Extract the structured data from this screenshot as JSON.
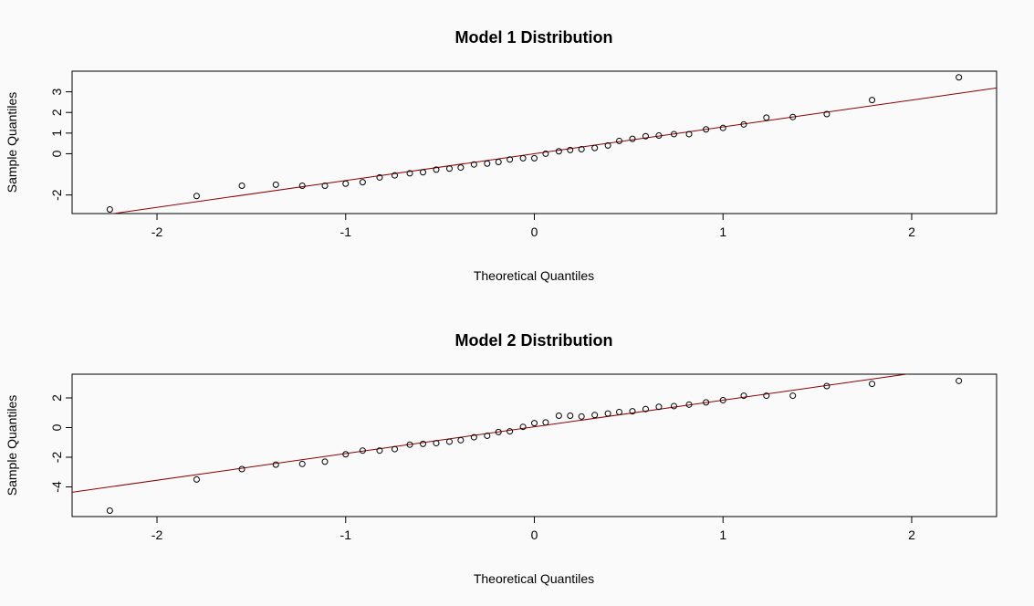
{
  "chart_data": [
    {
      "type": "scatter",
      "title": "Model 1 Distribution",
      "xlabel": "Theoretical Quantiles",
      "ylabel": "Sample Quantiles",
      "xlim": [
        -2.45,
        2.45
      ],
      "ylim": [
        -2.9,
        4.0
      ],
      "x_ticks": [
        -2,
        -1,
        0,
        1,
        2
      ],
      "x_tick_labels": [
        "-2",
        "-1",
        "0",
        "1",
        "2"
      ],
      "y_ticks": [
        -2,
        0,
        1,
        2,
        3
      ],
      "y_tick_labels": [
        "-2",
        "0",
        "1",
        "2",
        "3"
      ],
      "grid": false,
      "point_color": "#000000",
      "line_color": "#8b0000",
      "qq_line": {
        "intercept": 0.0,
        "slope": 1.3
      },
      "points": {
        "x": [
          -2.25,
          -1.79,
          -1.55,
          -1.37,
          -1.23,
          -1.11,
          -1.0,
          -0.91,
          -0.82,
          -0.74,
          -0.66,
          -0.59,
          -0.52,
          -0.45,
          -0.39,
          -0.32,
          -0.25,
          -0.19,
          -0.13,
          -0.06,
          0.0,
          0.06,
          0.13,
          0.19,
          0.25,
          0.32,
          0.39,
          0.45,
          0.52,
          0.59,
          0.66,
          0.74,
          0.82,
          0.91,
          1.0,
          1.11,
          1.23,
          1.37,
          1.55,
          1.79,
          2.25
        ],
        "y": [
          -2.7,
          -2.05,
          -1.55,
          -1.5,
          -1.55,
          -1.55,
          -1.45,
          -1.38,
          -1.15,
          -1.05,
          -0.95,
          -0.9,
          -0.77,
          -0.72,
          -0.67,
          -0.52,
          -0.48,
          -0.4,
          -0.28,
          -0.22,
          -0.22,
          0.0,
          0.12,
          0.18,
          0.22,
          0.28,
          0.4,
          0.62,
          0.72,
          0.85,
          0.88,
          0.95,
          0.95,
          1.18,
          1.25,
          1.42,
          1.75,
          1.78,
          1.92,
          2.6,
          3.7
        ]
      }
    },
    {
      "type": "scatter",
      "title": "Model 2 Distribution",
      "xlabel": "Theoretical Quantiles",
      "ylabel": "Sample Quantiles",
      "xlim": [
        -2.45,
        2.45
      ],
      "ylim": [
        -6.0,
        3.6
      ],
      "x_ticks": [
        -2,
        -1,
        0,
        1,
        2
      ],
      "x_tick_labels": [
        "-2",
        "-1",
        "0",
        "1",
        "2"
      ],
      "y_ticks": [
        -4,
        -2,
        0,
        2
      ],
      "y_tick_labels": [
        "-4",
        "-2",
        "0",
        "2"
      ],
      "grid": false,
      "point_color": "#000000",
      "line_color": "#8b0000",
      "qq_line": {
        "intercept": 0.05,
        "slope": 1.8
      },
      "points": {
        "x": [
          -2.25,
          -1.79,
          -1.55,
          -1.37,
          -1.23,
          -1.11,
          -1.0,
          -0.91,
          -0.82,
          -0.74,
          -0.66,
          -0.59,
          -0.52,
          -0.45,
          -0.39,
          -0.32,
          -0.25,
          -0.19,
          -0.13,
          -0.06,
          0.0,
          0.06,
          0.13,
          0.19,
          0.25,
          0.32,
          0.39,
          0.45,
          0.52,
          0.59,
          0.66,
          0.74,
          0.82,
          0.91,
          1.0,
          1.11,
          1.23,
          1.37,
          1.55,
          1.79,
          2.25
        ],
        "y": [
          -5.6,
          -3.5,
          -2.8,
          -2.5,
          -2.45,
          -2.3,
          -1.8,
          -1.55,
          -1.55,
          -1.45,
          -1.15,
          -1.1,
          -1.05,
          -0.95,
          -0.85,
          -0.65,
          -0.55,
          -0.3,
          -0.25,
          0.05,
          0.3,
          0.35,
          0.8,
          0.8,
          0.75,
          0.85,
          0.95,
          1.05,
          1.1,
          1.25,
          1.4,
          1.45,
          1.55,
          1.7,
          1.85,
          2.15,
          2.15,
          2.15,
          2.8,
          2.95,
          3.15
        ]
      }
    }
  ]
}
